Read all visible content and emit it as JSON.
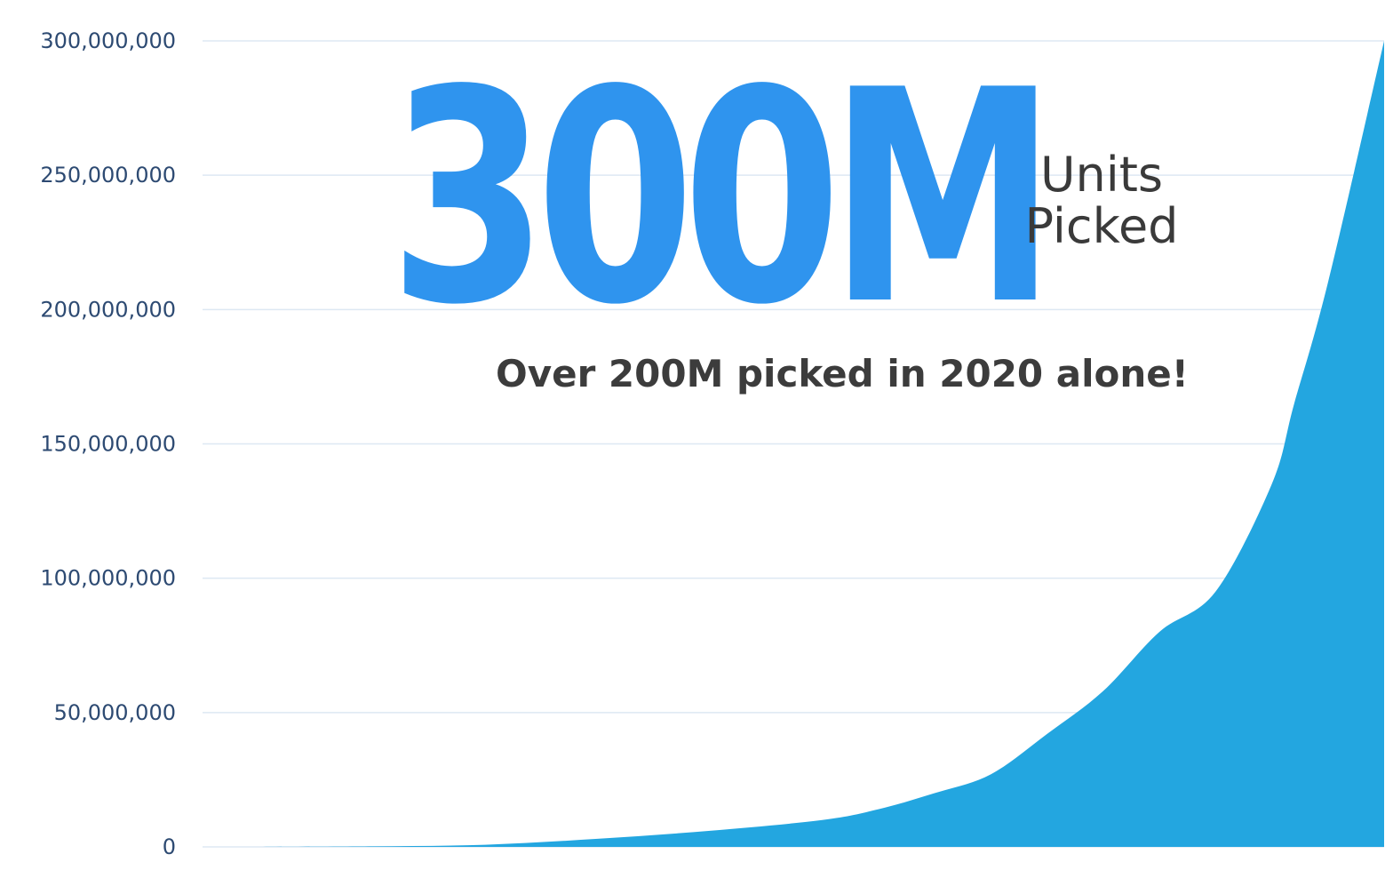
{
  "headline": {
    "value": "300M",
    "unit_line1": "Units",
    "unit_line2": "Picked",
    "subtitle": "Over 200M picked in 2020 alone!"
  },
  "colors": {
    "area": "#23a6e0",
    "headline": "#2f94ee",
    "tick_text": "#2d4a72",
    "grid": "#dde8f3",
    "text_dark": "#3c3c3c"
  },
  "chart_data": {
    "type": "area",
    "title": "",
    "xlabel": "",
    "ylabel": "",
    "ylim": [
      0,
      300000000
    ],
    "yticks": [
      0,
      50000000,
      100000000,
      150000000,
      200000000,
      250000000,
      300000000
    ],
    "ytick_labels": [
      "0",
      "50,000,000",
      "100,000,000",
      "150,000,000",
      "200,000,000",
      "250,000,000",
      "300,000,000"
    ],
    "grid": true,
    "legend": "none",
    "x": [
      0,
      10,
      20,
      30,
      40,
      50,
      55,
      60,
      65,
      70,
      75,
      80,
      85,
      90,
      92,
      95,
      100
    ],
    "series": [
      {
        "values": [
          0,
          200000,
          800000,
          3000000,
          6000000,
          10000000,
          14000000,
          20000000,
          27000000,
          42000000,
          58000000,
          80000000,
          95000000,
          135000000,
          165000000,
          210000000,
          300000000
        ]
      }
    ]
  }
}
